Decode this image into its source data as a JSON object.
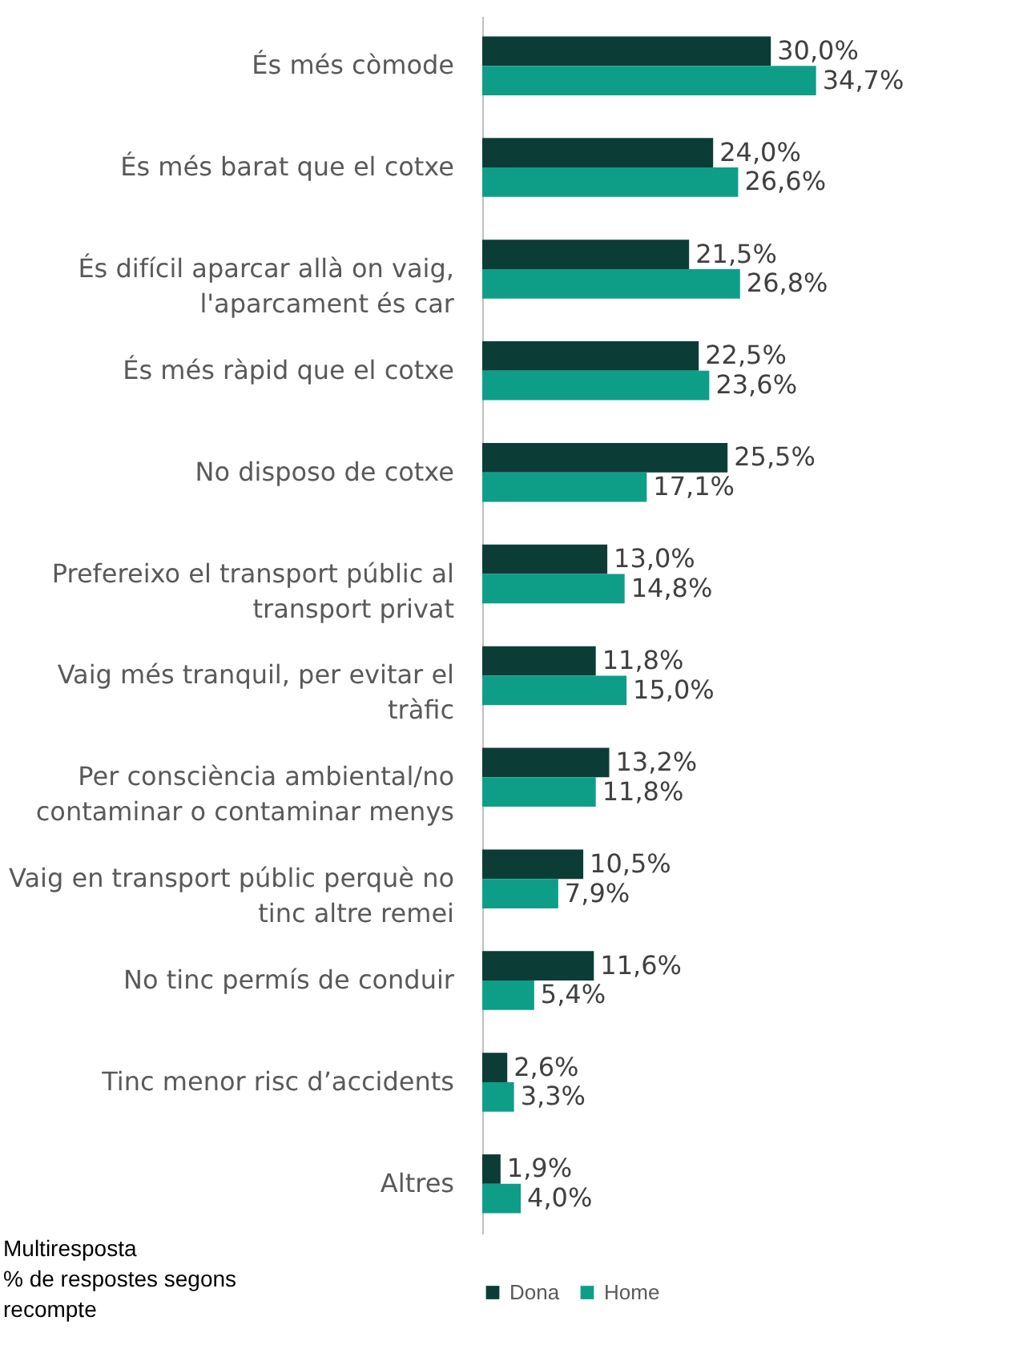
{
  "chart_data": {
    "type": "bar",
    "orientation": "horizontal",
    "categories": [
      "És més còmode",
      "És més barat que el cotxe",
      "És difícil aparcar allà on vaig, l'aparcament és car",
      "És més ràpid que el cotxe",
      "No disposo de cotxe",
      "Prefereixo el transport públic al transport privat",
      "Vaig més tranquil, per evitar el tràfic",
      "Per consciència ambiental/no contaminar o contaminar menys",
      "Vaig en transport públic perquè no tinc altre remei",
      "No tinc permís de conduir",
      "Tinc menor risc d’accidents",
      "Altres"
    ],
    "series": [
      {
        "name": "Dona",
        "color": "#0b3d36",
        "values": [
          30.0,
          24.0,
          21.5,
          22.5,
          25.5,
          13.0,
          11.8,
          13.2,
          10.5,
          11.6,
          2.6,
          1.9
        ],
        "value_labels": [
          "30,0%",
          "24,0%",
          "21,5%",
          "22,5%",
          "25,5%",
          "13,0%",
          "11,8%",
          "13,2%",
          "10,5%",
          "11,6%",
          "2,6%",
          "1,9%"
        ]
      },
      {
        "name": "Home",
        "color": "#0e9e87",
        "values": [
          34.7,
          26.6,
          26.8,
          23.6,
          17.1,
          14.8,
          15.0,
          11.8,
          7.9,
          5.4,
          3.3,
          4.0
        ],
        "value_labels": [
          "34,7%",
          "26,6%",
          "26,8%",
          "23,6%",
          "17,1%",
          "14,8%",
          "15,0%",
          "11,8%",
          "7,9%",
          "5,4%",
          "3,3%",
          "4,0%"
        ]
      }
    ],
    "legend": "bottom",
    "annotations": [
      "Multiresposta",
      "% de respostes segons recompte"
    ]
  }
}
